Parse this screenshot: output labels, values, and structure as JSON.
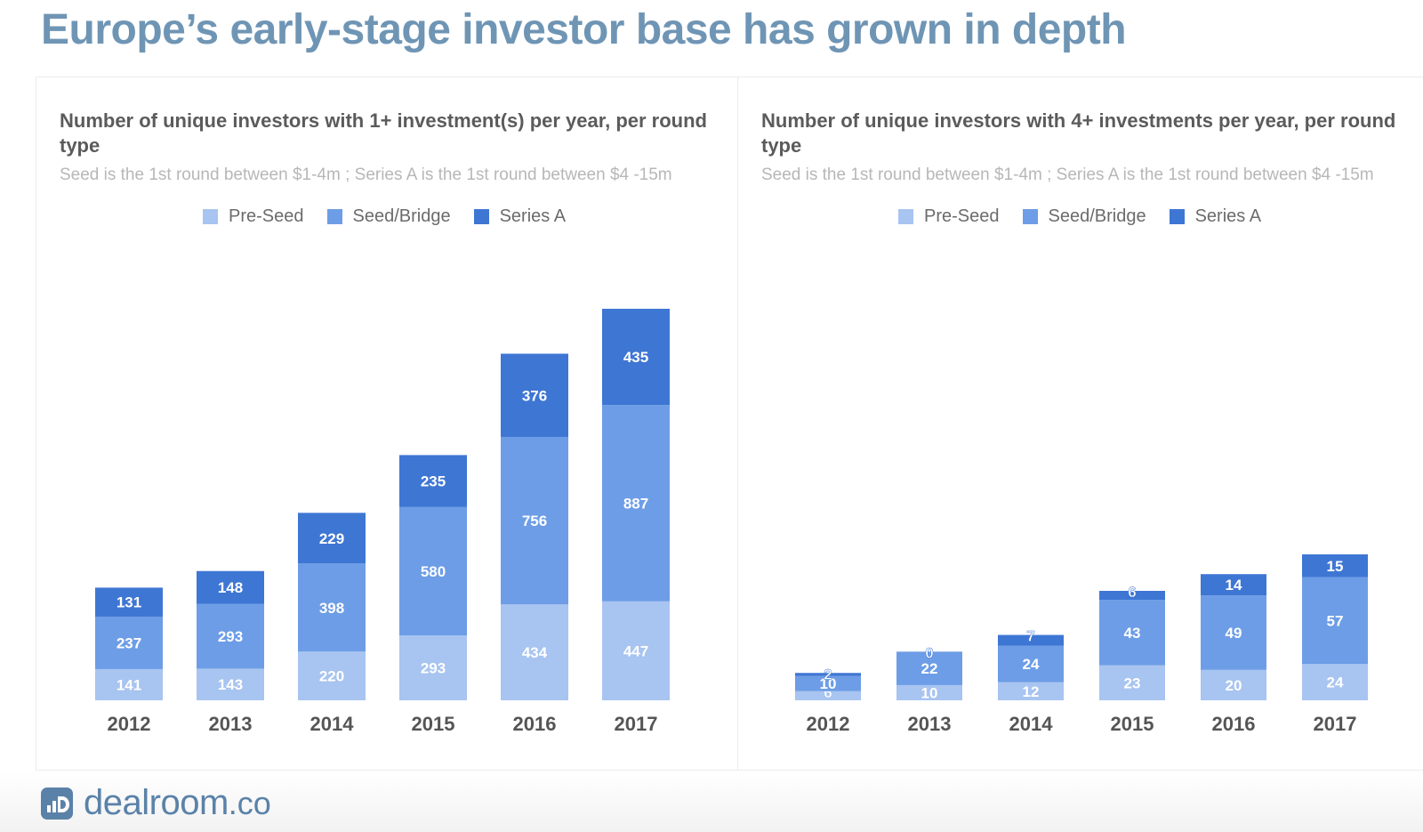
{
  "page": {
    "title": "Europe’s early-stage investor base has grown in depth"
  },
  "colors": {
    "pre_seed": "#a8c4f0",
    "seed_bridge": "#6d9de6",
    "series_a": "#3e76d4",
    "title": "#6f95b5"
  },
  "brand": {
    "name": "dealroom",
    "tld": ".co",
    "logo_icon": "dealroom-logo-icon"
  },
  "chart_data": [
    {
      "type": "bar",
      "stacked": true,
      "title": "Number of unique investors with 1+ investment(s) per year, per round type",
      "subtitle": "Seed is the 1st round between $1-4m ; Series A is the 1st round between $4 -15m",
      "legend": [
        "Pre-Seed",
        "Seed/Bridge",
        "Series A"
      ],
      "legend_position": "top-center",
      "categories": [
        "2012",
        "2013",
        "2014",
        "2015",
        "2016",
        "2017"
      ],
      "series": [
        {
          "name": "Pre-Seed",
          "values": [
            141,
            143,
            220,
            293,
            434,
            447
          ]
        },
        {
          "name": "Seed/Bridge",
          "values": [
            237,
            293,
            398,
            580,
            756,
            887
          ]
        },
        {
          "name": "Series A",
          "values": [
            131,
            148,
            229,
            235,
            376,
            435
          ]
        }
      ],
      "grid": false
    },
    {
      "type": "bar",
      "stacked": true,
      "title": "Number of unique investors with 4+ investments per year, per round type",
      "subtitle": "Seed is the 1st round between $1-4m ; Series A is the 1st round between $4 -15m",
      "legend": [
        "Pre-Seed",
        "Seed/Bridge",
        "Series A"
      ],
      "legend_position": "top-center",
      "categories": [
        "2012",
        "2013",
        "2014",
        "2015",
        "2016",
        "2017"
      ],
      "series": [
        {
          "name": "Pre-Seed",
          "values": [
            6,
            10,
            12,
            23,
            20,
            24
          ]
        },
        {
          "name": "Seed/Bridge",
          "values": [
            10,
            22,
            24,
            43,
            49,
            57
          ]
        },
        {
          "name": "Series A",
          "values": [
            2,
            0,
            7,
            6,
            14,
            15
          ]
        }
      ],
      "grid": false
    }
  ]
}
